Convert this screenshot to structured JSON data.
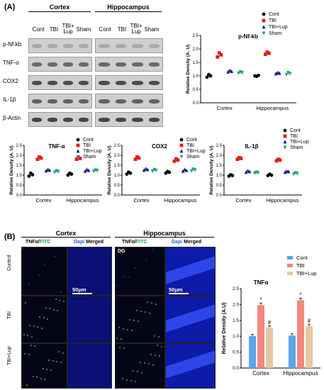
{
  "panel_a_label": "(A)",
  "panel_b_label": "(B)",
  "western": {
    "region_headers": [
      "Cortex",
      "Hippocampus"
    ],
    "lane_labels": [
      "Cont",
      "TBI",
      "TBI+\nLup",
      "Sham"
    ],
    "lane_labels_flat": [
      "Cont",
      "TBI",
      "TBI+ Lup",
      "Sham"
    ],
    "proteins": [
      "p-Nf-kb",
      "TNF-α",
      "COX2",
      "IL-1β",
      "β-Actin"
    ]
  },
  "dot_legend": [
    {
      "label": "Cont",
      "color": "#000000",
      "shape": "circle"
    },
    {
      "label": "TBI",
      "color": "#e0201b",
      "shape": "square"
    },
    {
      "label": "TBI+Lup",
      "color": "#1c1c8c",
      "shape": "triangle"
    },
    {
      "label": "Sham",
      "color": "#1aa37a",
      "shape": "down-triangle"
    }
  ],
  "chart_data": [
    {
      "type": "scatter",
      "title": "p-Nf-kb",
      "ylabel": "Relative Density (A. U)",
      "categories": [
        "Cortex",
        "Hippocampus"
      ],
      "ylim": [
        0,
        2.5
      ],
      "yticks": [
        "0.0",
        "0.5",
        "1.0",
        "1.5",
        "2.0",
        "2.5"
      ],
      "series": [
        {
          "name": "Cont",
          "values": [
            [
              0.95,
              1.05,
              1.0
            ],
            [
              1.0,
              0.98,
              1.02
            ]
          ]
        },
        {
          "name": "TBI",
          "values": [
            [
              1.7,
              1.85,
              1.78
            ],
            [
              1.8,
              1.88,
              1.84
            ]
          ]
        },
        {
          "name": "TBI+Lup",
          "values": [
            [
              1.15,
              1.2,
              1.17
            ],
            [
              1.08,
              1.12,
              1.1
            ]
          ]
        },
        {
          "name": "Sham",
          "values": [
            [
              1.1,
              1.15,
              1.12
            ],
            [
              1.05,
              1.12,
              1.08
            ]
          ]
        }
      ]
    },
    {
      "type": "scatter",
      "title": "TNF-α",
      "ylabel": "Relative Density (A. U)",
      "categories": [
        "Cortex",
        "Hippocampus"
      ],
      "ylim": [
        0,
        2.5
      ],
      "yticks": [
        "0.0",
        "0.5",
        "1.0",
        "1.5",
        "2.0",
        "2.5"
      ],
      "series": [
        {
          "name": "Cont",
          "values": [
            [
              0.95,
              1.1,
              1.02
            ],
            [
              1.0,
              1.1,
              1.05
            ]
          ]
        },
        {
          "name": "TBI",
          "values": [
            [
              1.8,
              1.92,
              1.86
            ],
            [
              1.8,
              1.9,
              1.84
            ]
          ]
        },
        {
          "name": "TBI+Lup",
          "values": [
            [
              1.22,
              1.28,
              1.25
            ],
            [
              1.2,
              1.28,
              1.24
            ]
          ]
        },
        {
          "name": "Sham",
          "values": [
            [
              1.15,
              1.22,
              1.18
            ],
            [
              1.2,
              1.26,
              1.23
            ]
          ]
        }
      ]
    },
    {
      "type": "scatter",
      "title": "COX2",
      "ylabel": "Relative Density (A. U)",
      "categories": [
        "Cortex",
        "Hippocampus"
      ],
      "ylim": [
        0,
        2.5
      ],
      "yticks": [
        "0.0",
        "0.5",
        "1.0",
        "1.5",
        "2.0",
        "2.5"
      ],
      "series": [
        {
          "name": "Cont",
          "values": [
            [
              1.05,
              1.15,
              1.1
            ],
            [
              1.1,
              1.18,
              1.14
            ]
          ]
        },
        {
          "name": "TBI",
          "values": [
            [
              1.8,
              1.92,
              1.86
            ],
            [
              1.7,
              1.82,
              1.76
            ]
          ]
        },
        {
          "name": "TBI+Lup",
          "values": [
            [
              1.25,
              1.32,
              1.28
            ],
            [
              1.2,
              1.28,
              1.24
            ]
          ]
        },
        {
          "name": "Sham",
          "values": [
            [
              1.2,
              1.28,
              1.24
            ],
            [
              1.22,
              1.3,
              1.26
            ]
          ]
        }
      ]
    },
    {
      "type": "scatter",
      "title": "IL-1β",
      "ylabel": "Relative Density (A. U)",
      "categories": [
        "Cortex",
        "Hippocampus"
      ],
      "ylim": [
        0,
        2.5
      ],
      "yticks": [
        "0.0",
        "0.5",
        "1.0",
        "1.5",
        "2.0",
        "2.5"
      ],
      "series": [
        {
          "name": "Cont",
          "values": [
            [
              0.95,
              1.02,
              0.98
            ],
            [
              0.98,
              1.05,
              1.0
            ]
          ]
        },
        {
          "name": "TBI",
          "values": [
            [
              1.8,
              1.88,
              1.84
            ],
            [
              1.72,
              1.8,
              1.76
            ]
          ]
        },
        {
          "name": "TBI+Lup",
          "values": [
            [
              1.15,
              1.22,
              1.18
            ],
            [
              1.15,
              1.2,
              1.18
            ]
          ]
        },
        {
          "name": "Sham",
          "values": [
            [
              1.1,
              1.15,
              1.12
            ],
            [
              1.05,
              1.12,
              1.08
            ]
          ]
        }
      ]
    },
    {
      "type": "bar",
      "title": "TNFα",
      "ylabel": "Relative Density (A.U)",
      "categories": [
        "Cortex",
        "Hippocampus"
      ],
      "ylim": [
        0,
        2.5
      ],
      "yticks": [
        "0.0",
        "0.5",
        "1.0",
        "1.5",
        "2.0",
        "2.5"
      ],
      "series": [
        {
          "name": "Cont",
          "color": "#5aa7e8",
          "values": [
            1.0,
            1.02
          ],
          "errors": [
            0.06,
            0.06
          ],
          "marks": [
            "",
            ""
          ]
        },
        {
          "name": "TBI",
          "color": "#f3877f",
          "values": [
            1.98,
            2.13
          ],
          "errors": [
            0.06,
            0.07
          ],
          "marks": [
            "*",
            "*"
          ]
        },
        {
          "name": "TBI+Lup",
          "color": "#e8c7a4",
          "values": [
            1.28,
            1.32
          ],
          "errors": [
            0.05,
            0.06
          ],
          "marks": [
            "#",
            "#"
          ]
        }
      ]
    }
  ],
  "micro": {
    "col_groups": [
      "Cortex",
      "Hippocampus"
    ],
    "col_labels_tnf": "TNFα/",
    "col_labels_fitc": "FITC",
    "col_labels_dapi": "Dapi",
    "col_labels_merged": "Merged",
    "row_labels": [
      "Control",
      "TBI",
      "TBI+Lup"
    ],
    "dg_label": "DG",
    "scale_bar": "50μm"
  }
}
